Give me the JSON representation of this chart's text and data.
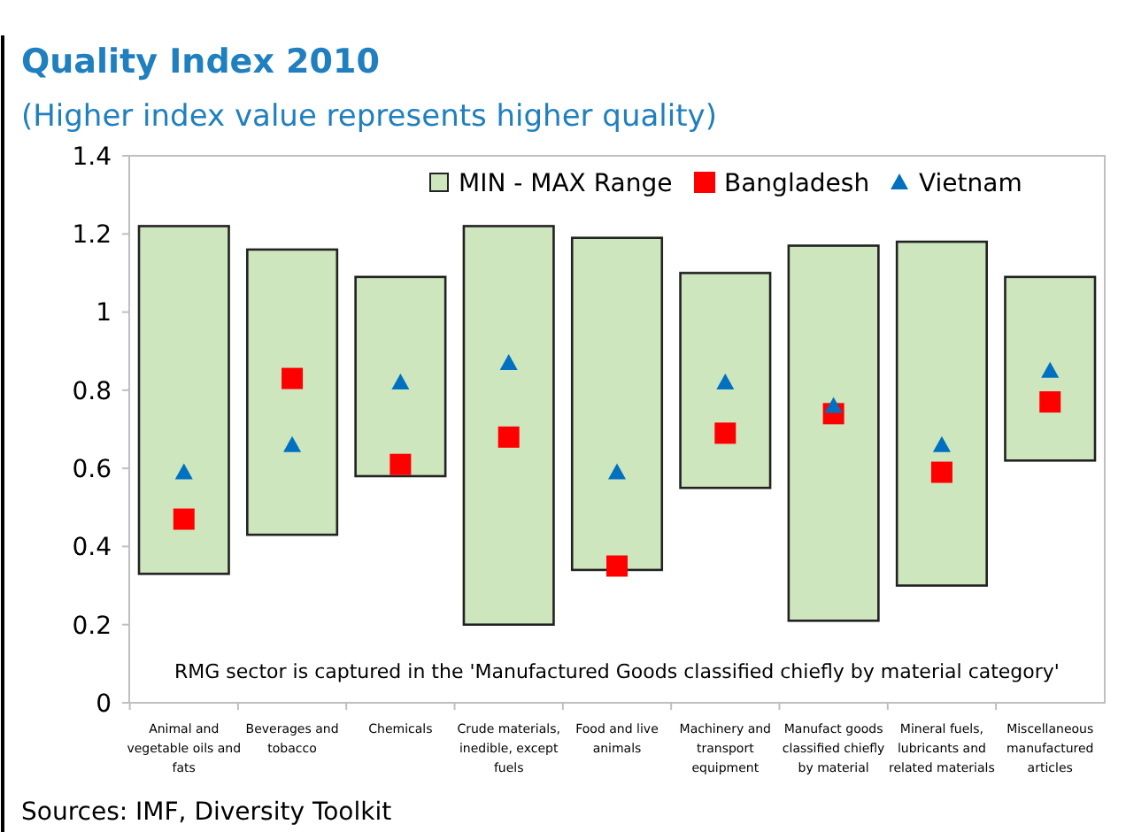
{
  "chart_data": {
    "type": "bar",
    "title": "Quality Index 2010",
    "subtitle": "(Higher index value represents higher quality)",
    "categories": [
      "Animal and vegetable oils and fats",
      "Beverages and tobacco",
      "Chemicals",
      "Crude materials, inedible, except fuels",
      "Food and live animals",
      "Machinery and transport equipment",
      "Manufact goods classified chiefly by material",
      "Mineral fuels, lubricants and related materials",
      "Miscellaneous manufactured articles"
    ],
    "series": [
      {
        "name": "MIN - MAX Range",
        "color": "#cde6be",
        "base": [
          0.33,
          0.43,
          0.58,
          0.2,
          0.34,
          0.55,
          0.21,
          0.3,
          0.62
        ],
        "values": [
          0.89,
          0.73,
          0.51,
          1.02,
          0.85,
          0.55,
          0.96,
          0.88,
          0.47
        ]
      },
      {
        "name": "Bangladesh",
        "type": "scatter",
        "marker": "square",
        "color": "#ff0000",
        "values": [
          0.47,
          0.83,
          0.61,
          0.68,
          0.35,
          0.69,
          0.74,
          0.59,
          0.77
        ]
      },
      {
        "name": "Vietnam",
        "type": "scatter",
        "marker": "triangle",
        "color": "#0070c0",
        "values": [
          0.59,
          0.66,
          0.82,
          0.87,
          0.59,
          0.82,
          0.76,
          0.66,
          0.85
        ]
      }
    ],
    "ylim": [
      0,
      1.4
    ],
    "yticks": [
      0,
      0.2,
      0.4,
      0.6,
      0.8,
      1,
      1.2,
      1.4
    ],
    "legend": "top",
    "annotations": [
      "RMG sector is captured in the 'Manufactured Goods classified chiefly by material category'",
      "Sources: IMF, Diversity Toolkit"
    ]
  }
}
